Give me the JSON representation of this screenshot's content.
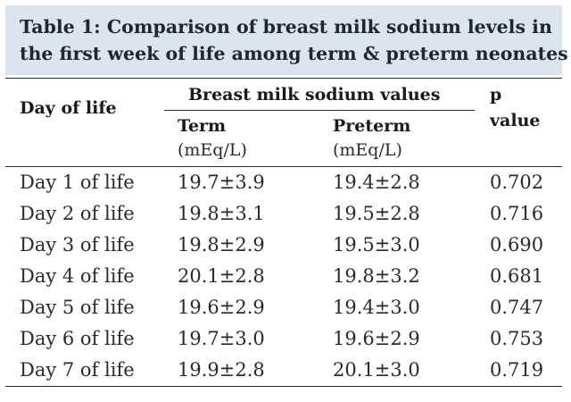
{
  "table": {
    "title_line1": "Table 1: Comparison of breast milk sodium levels in",
    "title_line2": "the first week of life among term & preterm neonates",
    "header": {
      "day_of_life": "Day of life",
      "group": "Breast milk sodium values",
      "term": "Term",
      "term_unit": "(mEq/L)",
      "preterm": "Preterm",
      "preterm_unit": "(mEq/L)",
      "p_line1": "p",
      "p_line2": "value"
    },
    "rows": [
      {
        "day": "Day 1 of life",
        "term": "19.7±3.9",
        "preterm": "19.4±2.8",
        "p": "0.702"
      },
      {
        "day": "Day 2 of life",
        "term": "19.8±3.1",
        "preterm": "19.5±2.8",
        "p": "0.716"
      },
      {
        "day": "Day 3 of life",
        "term": "19.8±2.9",
        "preterm": "19.5±3.0",
        "p": "0.690"
      },
      {
        "day": "Day 4 of life",
        "term": "20.1±2.8",
        "preterm": "19.8±3.2",
        "p": "0.681"
      },
      {
        "day": "Day 5 of life",
        "term": "19.6±2.9",
        "preterm": "19.4±3.0",
        "p": "0.747"
      },
      {
        "day": "Day 6 of life",
        "term": "19.7±3.0",
        "preterm": "19.6±2.9",
        "p": "0.753"
      },
      {
        "day": "Day 7 of life",
        "term": "19.9±2.8",
        "preterm": "20.1±3.0",
        "p": "0.719"
      }
    ]
  },
  "colors": {
    "title_background": "#dde4f1",
    "title_text": "#1b2733",
    "rule": "#2a2a2a"
  }
}
